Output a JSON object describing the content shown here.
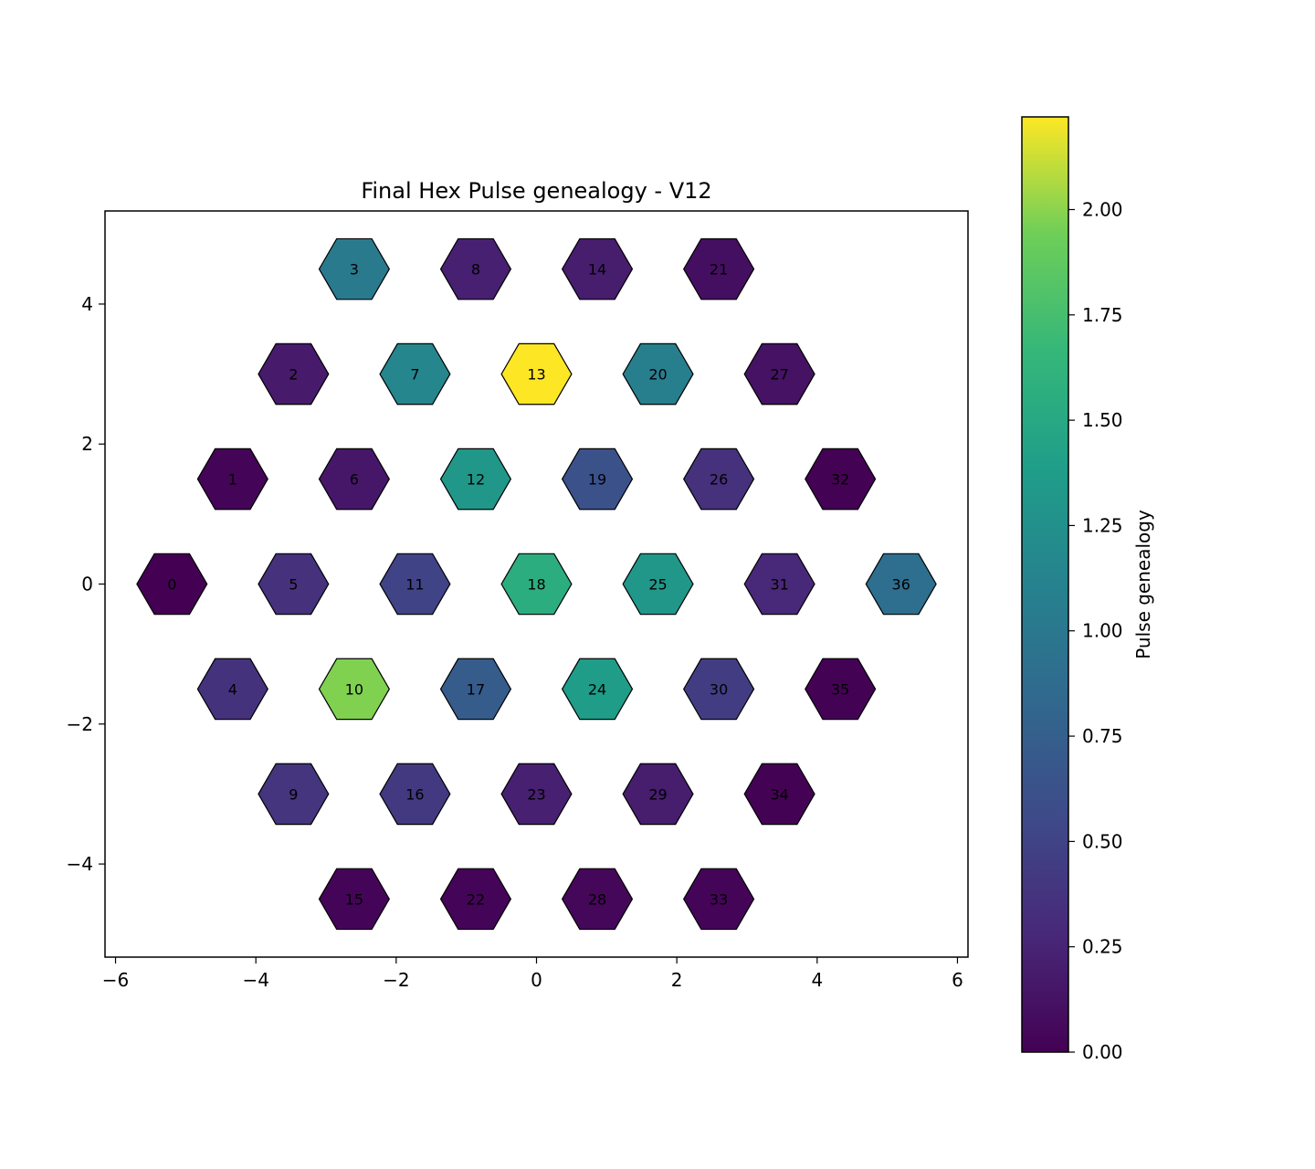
{
  "chart_data": {
    "type": "heatmap",
    "title": "Final Hex Pulse genealogy - V12",
    "xlabel": "",
    "ylabel": "",
    "xlim": [
      -6.15,
      6.15
    ],
    "ylim": [
      -5.33,
      5.33
    ],
    "xticks": [
      -6,
      -4,
      -2,
      0,
      2,
      4,
      6
    ],
    "xtick_labels": [
      "−6",
      "−4",
      "−2",
      "0",
      "2",
      "4",
      "6"
    ],
    "yticks": [
      -4,
      -2,
      0,
      2,
      4
    ],
    "ytick_labels": [
      "−4",
      "−2",
      "0",
      "2",
      "4"
    ],
    "grid": false,
    "colorbar": {
      "label": "Pulse genealogy",
      "colormap": "viridis",
      "range": [
        0,
        2.22
      ],
      "ticks": [
        0,
        0.25,
        0.5,
        0.75,
        1.0,
        1.25,
        1.5,
        1.75,
        2.0
      ],
      "tick_labels": [
        "0.00",
        "0.25",
        "0.50",
        "0.75",
        "1.00",
        "1.25",
        "1.50",
        "1.75",
        "2.00"
      ]
    },
    "cells": [
      {
        "id": "0",
        "x": -5.196,
        "y": 0.0,
        "value": 0.0
      },
      {
        "id": "1",
        "x": -4.33,
        "y": 1.5,
        "value": 0.02
      },
      {
        "id": "2",
        "x": -3.464,
        "y": 3.0,
        "value": 0.18
      },
      {
        "id": "3",
        "x": -2.598,
        "y": 4.5,
        "value": 1.02
      },
      {
        "id": "4",
        "x": -4.33,
        "y": -1.5,
        "value": 0.36
      },
      {
        "id": "5",
        "x": -3.464,
        "y": 0.0,
        "value": 0.35
      },
      {
        "id": "6",
        "x": -2.598,
        "y": 1.5,
        "value": 0.16
      },
      {
        "id": "7",
        "x": -1.732,
        "y": 3.0,
        "value": 1.15
      },
      {
        "id": "8",
        "x": -0.866,
        "y": 4.5,
        "value": 0.22
      },
      {
        "id": "9",
        "x": -3.464,
        "y": -3.0,
        "value": 0.38
      },
      {
        "id": "10",
        "x": -2.598,
        "y": -1.5,
        "value": 1.98
      },
      {
        "id": "11",
        "x": -1.732,
        "y": 0.0,
        "value": 0.5
      },
      {
        "id": "12",
        "x": -0.866,
        "y": 1.5,
        "value": 1.32
      },
      {
        "id": "13",
        "x": 0.0,
        "y": 3.0,
        "value": 2.22
      },
      {
        "id": "14",
        "x": 0.866,
        "y": 4.5,
        "value": 0.2
      },
      {
        "id": "15",
        "x": -2.598,
        "y": -4.5,
        "value": 0.03
      },
      {
        "id": "16",
        "x": -1.732,
        "y": -3.0,
        "value": 0.42
      },
      {
        "id": "17",
        "x": -0.866,
        "y": -1.5,
        "value": 0.72
      },
      {
        "id": "18",
        "x": 0.0,
        "y": 0.0,
        "value": 1.55
      },
      {
        "id": "19",
        "x": 0.866,
        "y": 1.5,
        "value": 0.62
      },
      {
        "id": "20",
        "x": 1.732,
        "y": 3.0,
        "value": 1.08
      },
      {
        "id": "21",
        "x": 2.598,
        "y": 4.5,
        "value": 0.1
      },
      {
        "id": "22",
        "x": -0.866,
        "y": -4.5,
        "value": 0.02
      },
      {
        "id": "23",
        "x": 0.0,
        "y": -3.0,
        "value": 0.22
      },
      {
        "id": "24",
        "x": 0.866,
        "y": -1.5,
        "value": 1.38
      },
      {
        "id": "25",
        "x": 1.732,
        "y": 0.0,
        "value": 1.32
      },
      {
        "id": "26",
        "x": 2.598,
        "y": 1.5,
        "value": 0.35
      },
      {
        "id": "27",
        "x": 3.464,
        "y": 3.0,
        "value": 0.12
      },
      {
        "id": "28",
        "x": 0.866,
        "y": -4.5,
        "value": 0.04
      },
      {
        "id": "29",
        "x": 1.732,
        "y": -3.0,
        "value": 0.2
      },
      {
        "id": "30",
        "x": 2.598,
        "y": -1.5,
        "value": 0.45
      },
      {
        "id": "31",
        "x": 3.464,
        "y": 0.0,
        "value": 0.28
      },
      {
        "id": "32",
        "x": 4.33,
        "y": 1.5,
        "value": 0.01
      },
      {
        "id": "33",
        "x": 2.598,
        "y": -4.5,
        "value": 0.03
      },
      {
        "id": "34",
        "x": 3.464,
        "y": -3.0,
        "value": 0.01
      },
      {
        "id": "35",
        "x": 4.33,
        "y": -1.5,
        "value": 0.01
      },
      {
        "id": "36",
        "x": 5.196,
        "y": 0.0,
        "value": 0.9
      }
    ]
  }
}
